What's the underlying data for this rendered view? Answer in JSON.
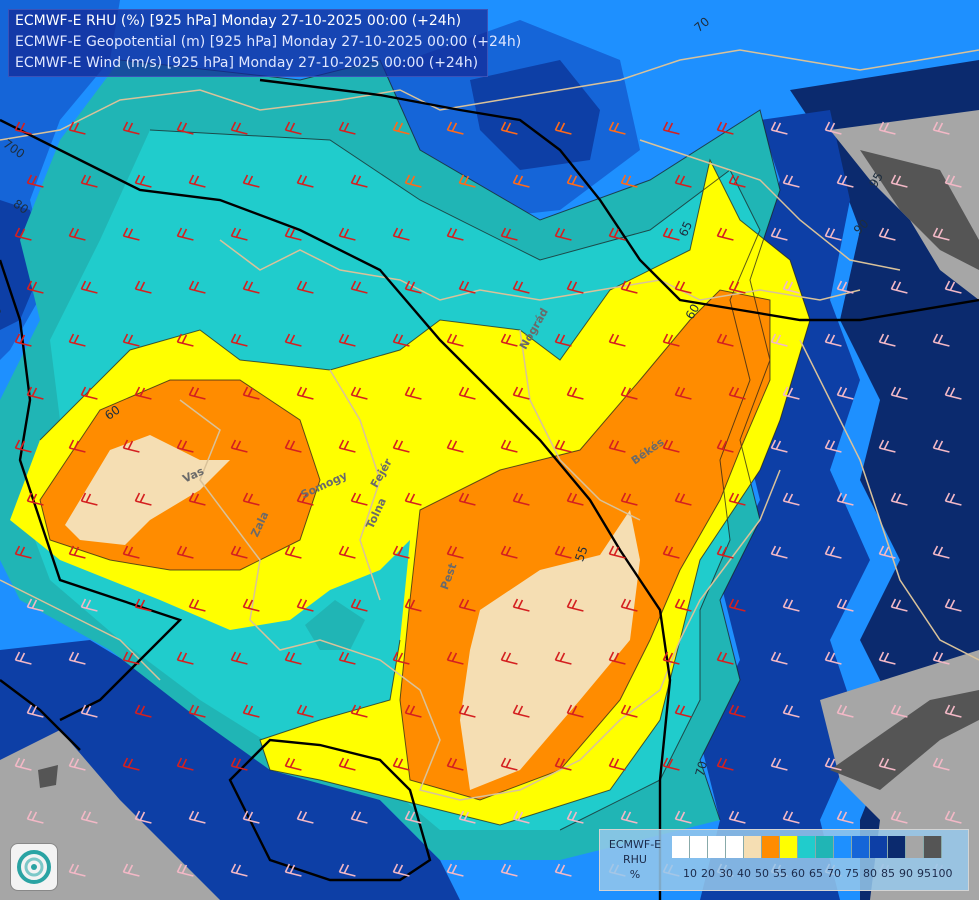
{
  "header": {
    "line1": "ECMWF-E RHU (%) [925 hPa] Monday 27-10-2025 00:00 (+24h)",
    "line2": "ECMWF-E Geopotential (m) [925 hPa] Monday 27-10-2025 00:00 (+24h)",
    "line3": "ECMWF-E Wind (m/s) [925 hPa] Monday 27-10-2025 00:00 (+24h)"
  },
  "legend": {
    "title1": "ECMWF-E",
    "title2": "RHU",
    "unit": "%",
    "ticks": [
      "10",
      "20",
      "30",
      "40",
      "50",
      "55",
      "60",
      "65",
      "70",
      "75",
      "80",
      "85",
      "90",
      "95",
      "100"
    ],
    "colors": [
      "#ffffff",
      "#ffffff",
      "#ffffff",
      "#ffffff",
      "#f5deb3",
      "#ff8c00",
      "#ffff00",
      "#20cccc",
      "#20b5b5",
      "#1e90ff",
      "#1565d8",
      "#0d3fa6",
      "#0b2a6e",
      "#a6a6a6",
      "#555555"
    ]
  },
  "map": {
    "contour_labels": [
      "720",
      "700",
      "80",
      "60",
      "65",
      "60",
      "55",
      "70",
      "95",
      "90",
      "70"
    ],
    "place_labels": [
      "Vas",
      "Somogy",
      "Zala",
      "Tolna",
      "Fejér",
      "Nógrád",
      "Pest",
      "Békés"
    ],
    "colors": {
      "pale": "#f5deb3",
      "orange": "#ff8c00",
      "yellow": "#ffff00",
      "cyan": "#20cccc",
      "teal": "#20b5b5",
      "blue": "#1e90ff",
      "blue2": "#1565d8",
      "navy": "#0d3fa6",
      "navy2": "#0b2a6e",
      "grey": "#a6a6a6",
      "darkgrey": "#555555",
      "border": "#d9c29a",
      "geopot": "#000000",
      "wind": "#cc2020"
    }
  }
}
